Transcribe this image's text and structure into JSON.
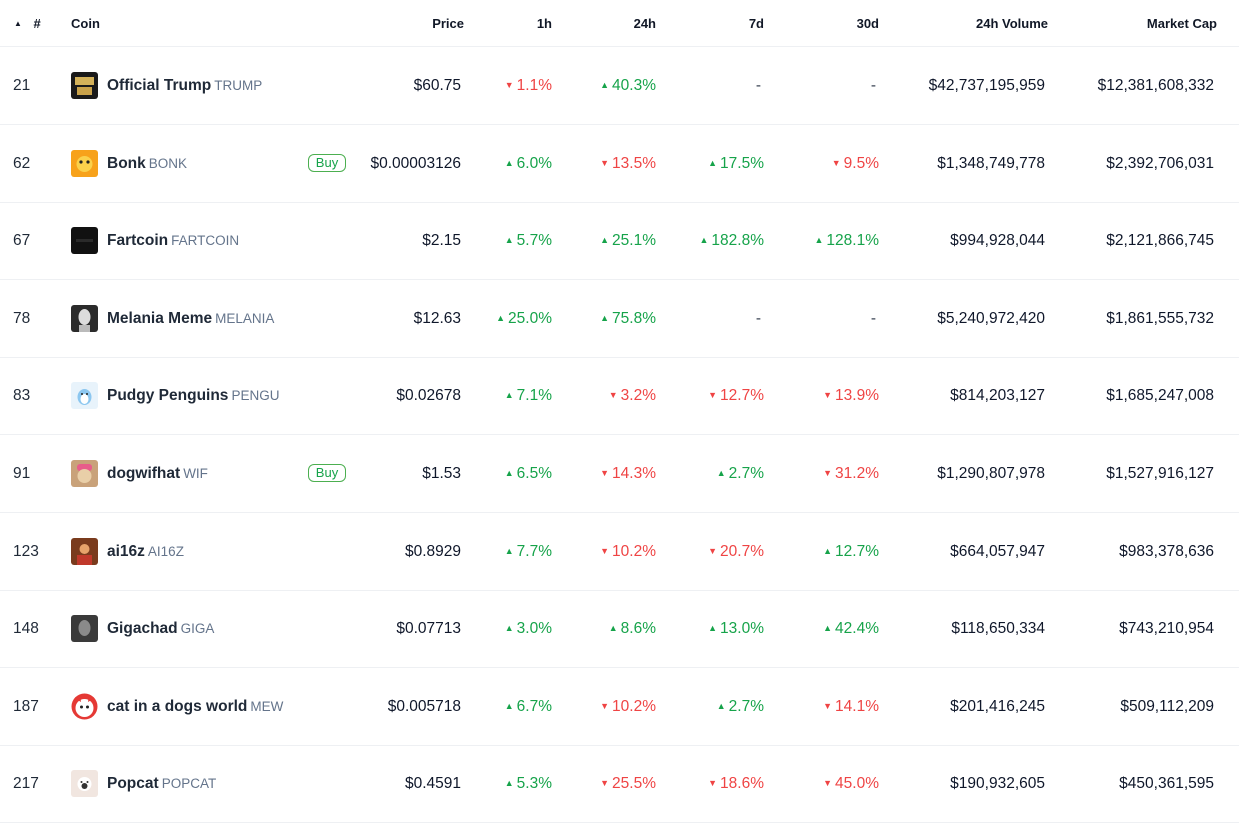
{
  "columns": {
    "sort_indicator": "▲",
    "rank": "#",
    "coin": "Coin",
    "price": "Price",
    "h1": "1h",
    "h24": "24h",
    "d7": "7d",
    "d30": "30d",
    "volume": "24h Volume",
    "mcap": "Market Cap"
  },
  "buy_label": "Buy",
  "rows": [
    {
      "rank": "21",
      "name": "Official Trump",
      "symbol": "TRUMP",
      "logo": "trump-logo-icon",
      "logo_bg": "#1a1a1a",
      "buy": false,
      "price": "$60.75",
      "h1": {
        "v": "1.1%",
        "dir": "down"
      },
      "h24": {
        "v": "40.3%",
        "dir": "up"
      },
      "d7": {
        "v": "-",
        "dir": "none"
      },
      "d30": {
        "v": "-",
        "dir": "none"
      },
      "volume": "$42,737,195,959",
      "mcap": "$12,381,608,332"
    },
    {
      "rank": "62",
      "name": "Bonk",
      "symbol": "BONK",
      "logo": "bonk-logo-icon",
      "logo_bg": "#f7a21b",
      "buy": true,
      "price": "$0.00003126",
      "h1": {
        "v": "6.0%",
        "dir": "up"
      },
      "h24": {
        "v": "13.5%",
        "dir": "down"
      },
      "d7": {
        "v": "17.5%",
        "dir": "up"
      },
      "d30": {
        "v": "9.5%",
        "dir": "down"
      },
      "volume": "$1,348,749,778",
      "mcap": "$2,392,706,031"
    },
    {
      "rank": "67",
      "name": "Fartcoin",
      "symbol": "FARTCOIN",
      "logo": "fartcoin-logo-icon",
      "logo_bg": "#111111",
      "buy": false,
      "price": "$2.15",
      "h1": {
        "v": "5.7%",
        "dir": "up"
      },
      "h24": {
        "v": "25.1%",
        "dir": "up"
      },
      "d7": {
        "v": "182.8%",
        "dir": "up"
      },
      "d30": {
        "v": "128.1%",
        "dir": "up"
      },
      "volume": "$994,928,044",
      "mcap": "$2,121,866,745"
    },
    {
      "rank": "78",
      "name": "Melania Meme",
      "symbol": "MELANIA",
      "logo": "melania-logo-icon",
      "logo_bg": "#2b2b2b",
      "buy": false,
      "price": "$12.63",
      "h1": {
        "v": "25.0%",
        "dir": "up"
      },
      "h24": {
        "v": "75.8%",
        "dir": "up"
      },
      "d7": {
        "v": "-",
        "dir": "none"
      },
      "d30": {
        "v": "-",
        "dir": "none"
      },
      "volume": "$5,240,972,420",
      "mcap": "$1,861,555,732"
    },
    {
      "rank": "83",
      "name": "Pudgy Penguins",
      "symbol": "PENGU",
      "logo": "pengu-logo-icon",
      "logo_bg": "#e8f3fb",
      "buy": false,
      "price": "$0.02678",
      "h1": {
        "v": "7.1%",
        "dir": "up"
      },
      "h24": {
        "v": "3.2%",
        "dir": "down"
      },
      "d7": {
        "v": "12.7%",
        "dir": "down"
      },
      "d30": {
        "v": "13.9%",
        "dir": "down"
      },
      "volume": "$814,203,127",
      "mcap": "$1,685,247,008"
    },
    {
      "rank": "91",
      "name": "dogwifhat",
      "symbol": "WIF",
      "logo": "wif-logo-icon",
      "logo_bg": "#c9a27a",
      "buy": true,
      "price": "$1.53",
      "h1": {
        "v": "6.5%",
        "dir": "up"
      },
      "h24": {
        "v": "14.3%",
        "dir": "down"
      },
      "d7": {
        "v": "2.7%",
        "dir": "up"
      },
      "d30": {
        "v": "31.2%",
        "dir": "down"
      },
      "volume": "$1,290,807,978",
      "mcap": "$1,527,916,127"
    },
    {
      "rank": "123",
      "name": "ai16z",
      "symbol": "AI16Z",
      "logo": "ai16z-logo-icon",
      "logo_bg": "#7a3b1d",
      "buy": false,
      "price": "$0.8929",
      "h1": {
        "v": "7.7%",
        "dir": "up"
      },
      "h24": {
        "v": "10.2%",
        "dir": "down"
      },
      "d7": {
        "v": "20.7%",
        "dir": "down"
      },
      "d30": {
        "v": "12.7%",
        "dir": "up"
      },
      "volume": "$664,057,947",
      "mcap": "$983,378,636"
    },
    {
      "rank": "148",
      "name": "Gigachad",
      "symbol": "GIGA",
      "logo": "giga-logo-icon",
      "logo_bg": "#3a3a3a",
      "buy": false,
      "price": "$0.07713",
      "h1": {
        "v": "3.0%",
        "dir": "up"
      },
      "h24": {
        "v": "8.6%",
        "dir": "up"
      },
      "d7": {
        "v": "13.0%",
        "dir": "up"
      },
      "d30": {
        "v": "42.4%",
        "dir": "up"
      },
      "volume": "$118,650,334",
      "mcap": "$743,210,954"
    },
    {
      "rank": "187",
      "name": "cat in a dogs world",
      "symbol": "MEW",
      "logo": "mew-logo-icon",
      "logo_bg": "#ffffff",
      "buy": false,
      "price": "$0.005718",
      "h1": {
        "v": "6.7%",
        "dir": "up"
      },
      "h24": {
        "v": "10.2%",
        "dir": "down"
      },
      "d7": {
        "v": "2.7%",
        "dir": "up"
      },
      "d30": {
        "v": "14.1%",
        "dir": "down"
      },
      "volume": "$201,416,245",
      "mcap": "$509,112,209"
    },
    {
      "rank": "217",
      "name": "Popcat",
      "symbol": "POPCAT",
      "logo": "popcat-logo-icon",
      "logo_bg": "#f1e6e0",
      "buy": false,
      "price": "$0.4591",
      "h1": {
        "v": "5.3%",
        "dir": "up"
      },
      "h24": {
        "v": "25.5%",
        "dir": "down"
      },
      "d7": {
        "v": "18.6%",
        "dir": "down"
      },
      "d30": {
        "v": "45.0%",
        "dir": "down"
      },
      "volume": "$190,932,605",
      "mcap": "$450,361,595"
    }
  ]
}
